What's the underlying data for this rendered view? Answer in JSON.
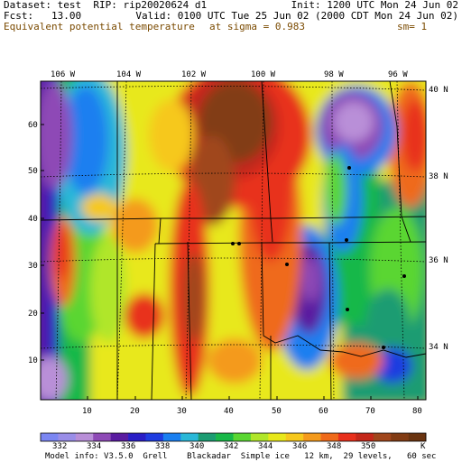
{
  "header": {
    "line1_left": "Dataset: test  RIP: rip20020624 d1",
    "line1_right": "Init: 1200 UTC Mon 24 Jun 02",
    "line2_left": "Fcst:   13.00",
    "line2_right": "Valid: 0100 UTC Tue 25 Jun 02 (2000 CDT Mon 24 Jun 02)",
    "line3_left": "Equivalent potential temperature",
    "line3_mid": "at sigma = 0.983",
    "line3_right": "sm= 1"
  },
  "lon_labels": [
    "106 W",
    "104 W",
    "102 W",
    "100 W",
    "98 W",
    "96 W"
  ],
  "lat_labels": [
    "40 N",
    "38 N",
    "36 N",
    "34 N"
  ],
  "grid_y_labels": [
    "60",
    "50",
    "40",
    "30",
    "20",
    "10"
  ],
  "grid_x_labels": [
    "10",
    "20",
    "30",
    "40",
    "50",
    "60",
    "70",
    "80"
  ],
  "colorbar": {
    "labels": [
      "332",
      "334",
      "336",
      "338",
      "340",
      "342",
      "344",
      "346",
      "348",
      "350"
    ],
    "unit": "K",
    "colors": [
      "#7b86f2",
      "#9a8ee8",
      "#b98fd8",
      "#8e4ab6",
      "#5a1ca0",
      "#2a1ec6",
      "#1f3ce0",
      "#1a7ff0",
      "#2ab8d8",
      "#1c9c72",
      "#18b848",
      "#5ad632",
      "#b0e62a",
      "#e8e81a",
      "#f6c81c",
      "#f49a1c",
      "#ef6a1a",
      "#e8301c",
      "#c4281a",
      "#a0461c",
      "#823c14",
      "#6a3410"
    ]
  },
  "footer": "Model info: V3.5.0  Grell    Blackadar  Simple ice   12 km,  29 levels,   60 sec"
}
